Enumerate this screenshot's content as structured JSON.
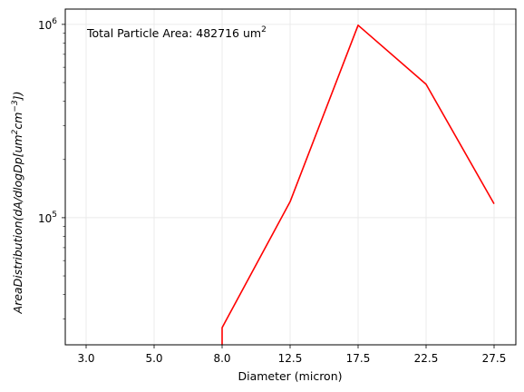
{
  "chart_data": {
    "type": "line",
    "title": "",
    "xlabel": "Diameter (micron)",
    "ylabel": "AreaDistribution(dA/dlogDp[um^2 cm^-3])",
    "x_ticks": [
      3.0,
      5.0,
      8.0,
      12.5,
      17.5,
      22.5,
      27.5
    ],
    "x_tick_labels": [
      "3.0",
      "5.0",
      "8.0",
      "12.5",
      "17.5",
      "22.5",
      "27.5"
    ],
    "y_scale": "log",
    "ylim": [
      22000,
      1200000
    ],
    "y_ticks": [
      100000,
      1000000
    ],
    "y_tick_labels": {
      "base": "10",
      "exponents": [
        "5",
        "6"
      ]
    },
    "grid": true,
    "series": [
      {
        "color": "#ff0000",
        "points": [
          {
            "x": 8.0,
            "y": 22000
          },
          {
            "x": 8.0,
            "y": 27000
          },
          {
            "x": 12.5,
            "y": 121000
          },
          {
            "x": 17.5,
            "y": 990000
          },
          {
            "x": 22.5,
            "y": 490000
          },
          {
            "x": 27.5,
            "y": 118000
          }
        ]
      }
    ],
    "annotation": {
      "text": "Total Particle Area: 482716 um",
      "superscript": "2"
    }
  }
}
